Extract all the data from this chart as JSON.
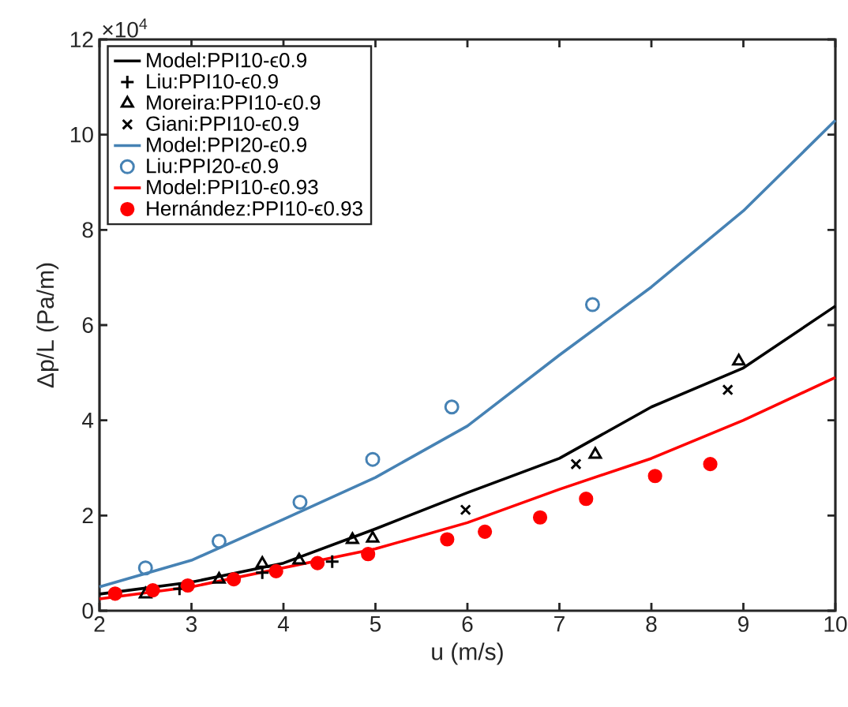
{
  "chart_data": {
    "type": "line",
    "xlabel": "u (m/s)",
    "ylabel": "Δp/L (Pa/m)",
    "annotations": [
      "×10$^{4}$"
    ],
    "xlim": [
      2,
      10
    ],
    "ylim": [
      0,
      12
    ],
    "xticks": [
      2,
      3,
      4,
      5,
      6,
      7,
      8,
      9,
      10
    ],
    "yticks": [
      0,
      2,
      4,
      6,
      8,
      10,
      12
    ],
    "legend": "top left",
    "grid": false,
    "series": [
      {
        "name": "Model:PPI10-ϵ0.9",
        "color": "#000000",
        "x": [
          2,
          3,
          4,
          5,
          6,
          7,
          8,
          9,
          10
        ],
        "values": [
          0.35,
          0.6,
          1.0,
          1.72,
          2.48,
          3.2,
          4.28,
          5.1,
          6.4
        ]
      },
      {
        "name": "Liu:PPI10-ϵ0.9",
        "type": "scatter",
        "marker": "plus",
        "color": "#000000",
        "x": [
          2.87,
          3.77,
          4.53
        ],
        "values": [
          0.46,
          0.8,
          1.03
        ]
      },
      {
        "name": "Moreira:PPI10-ϵ0.9",
        "type": "scatter",
        "marker": "triangle",
        "color": "#000000",
        "x": [
          2.5,
          3.3,
          3.77,
          4.17,
          4.75,
          4.97,
          7.39,
          8.95
        ],
        "values": [
          0.35,
          0.66,
          0.99,
          1.06,
          1.49,
          1.52,
          3.28,
          5.24
        ]
      },
      {
        "name": "Giani:PPI10-ϵ0.9",
        "type": "scatter",
        "marker": "cross",
        "color": "#000000",
        "x": [
          5.98,
          7.18,
          8.83
        ],
        "values": [
          2.12,
          3.08,
          4.64
        ]
      },
      {
        "name": "Model:PPI20-ϵ0.9",
        "color": "#4682b4",
        "x": [
          2,
          3,
          4,
          5,
          6,
          7,
          8,
          9,
          10
        ],
        "values": [
          0.5,
          1.06,
          1.92,
          2.8,
          3.88,
          5.37,
          6.8,
          8.4,
          10.3
        ]
      },
      {
        "name": "Liu:PPI20-ϵ0.9",
        "type": "scatter",
        "marker": "circle",
        "color": "#4682b4",
        "x": [
          2.5,
          3.3,
          4.18,
          4.97,
          5.83,
          7.36
        ],
        "values": [
          0.9,
          1.46,
          2.28,
          3.18,
          4.28,
          6.43
        ]
      },
      {
        "name": "Model:PPI10-ϵ0.93",
        "color": "#ff0000",
        "x": [
          2,
          3,
          4,
          5,
          6,
          7,
          8,
          9,
          10
        ],
        "values": [
          0.25,
          0.5,
          0.9,
          1.3,
          1.85,
          2.55,
          3.2,
          4.0,
          4.9
        ]
      },
      {
        "name": "Hernández:PPI10-ϵ0.93",
        "type": "scatter",
        "marker": "dot",
        "color": "#ff0000",
        "x": [
          2.17,
          2.58,
          2.96,
          3.46,
          3.92,
          4.37,
          4.92,
          5.78,
          6.19,
          6.79,
          7.29,
          8.04,
          8.64
        ],
        "values": [
          0.36,
          0.43,
          0.53,
          0.66,
          0.83,
          1.0,
          1.19,
          1.5,
          1.66,
          1.96,
          2.35,
          2.83,
          3.08
        ]
      }
    ]
  }
}
